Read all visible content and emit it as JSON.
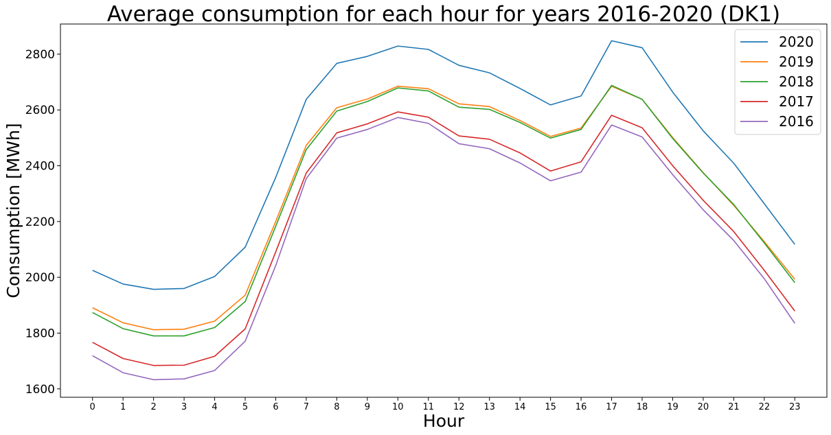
{
  "chart_data": {
    "type": "line",
    "title": "Average consumption for each hour for years 2016-2020 (DK1)",
    "xlabel": "Hour",
    "ylabel": "Consumption [MWh]",
    "x": [
      0,
      1,
      2,
      3,
      4,
      5,
      6,
      7,
      8,
      9,
      10,
      11,
      12,
      13,
      14,
      15,
      16,
      17,
      18,
      19,
      20,
      21,
      22,
      23
    ],
    "xticks": [
      "0",
      "1",
      "2",
      "3",
      "4",
      "5",
      "6",
      "7",
      "8",
      "9",
      "10",
      "11",
      "12",
      "13",
      "14",
      "15",
      "16",
      "17",
      "18",
      "19",
      "20",
      "21",
      "22",
      "23"
    ],
    "yticks": [
      1600,
      1800,
      2000,
      2200,
      2400,
      2600,
      2800
    ],
    "xlim": [
      -1.05,
      24.05
    ],
    "ylim": [
      1570,
      2908
    ],
    "grid": false,
    "legend_position": "top-right",
    "series": [
      {
        "name": "2020",
        "color": "#1f77b4",
        "values": [
          2025,
          1976,
          1957,
          1960,
          2003,
          2108,
          2358,
          2638,
          2767,
          2792,
          2829,
          2817,
          2760,
          2733,
          2677,
          2618,
          2650,
          2848,
          2823,
          2664,
          2525,
          2409,
          2264,
          2118
        ]
      },
      {
        "name": "2019",
        "color": "#ff7f0e",
        "values": [
          1891,
          1837,
          1812,
          1814,
          1843,
          1936,
          2200,
          2473,
          2608,
          2639,
          2685,
          2676,
          2622,
          2612,
          2562,
          2505,
          2535,
          2685,
          2638,
          2501,
          2375,
          2258,
          2128,
          1993
        ]
      },
      {
        "name": "2018",
        "color": "#2ca02c",
        "values": [
          1874,
          1816,
          1790,
          1790,
          1820,
          1913,
          2183,
          2458,
          2596,
          2630,
          2679,
          2668,
          2610,
          2602,
          2555,
          2499,
          2530,
          2688,
          2638,
          2498,
          2374,
          2261,
          2123,
          1981
        ]
      },
      {
        "name": "2017",
        "color": "#d62728",
        "values": [
          1767,
          1709,
          1684,
          1685,
          1717,
          1815,
          2091,
          2374,
          2518,
          2550,
          2593,
          2574,
          2507,
          2495,
          2446,
          2381,
          2414,
          2581,
          2536,
          2400,
          2276,
          2164,
          2025,
          1879
        ]
      },
      {
        "name": "2016",
        "color": "#9467bd",
        "values": [
          1719,
          1658,
          1633,
          1636,
          1666,
          1771,
          2042,
          2354,
          2499,
          2530,
          2573,
          2552,
          2479,
          2461,
          2410,
          2346,
          2377,
          2546,
          2503,
          2368,
          2242,
          2132,
          1995,
          1835
        ]
      }
    ]
  }
}
